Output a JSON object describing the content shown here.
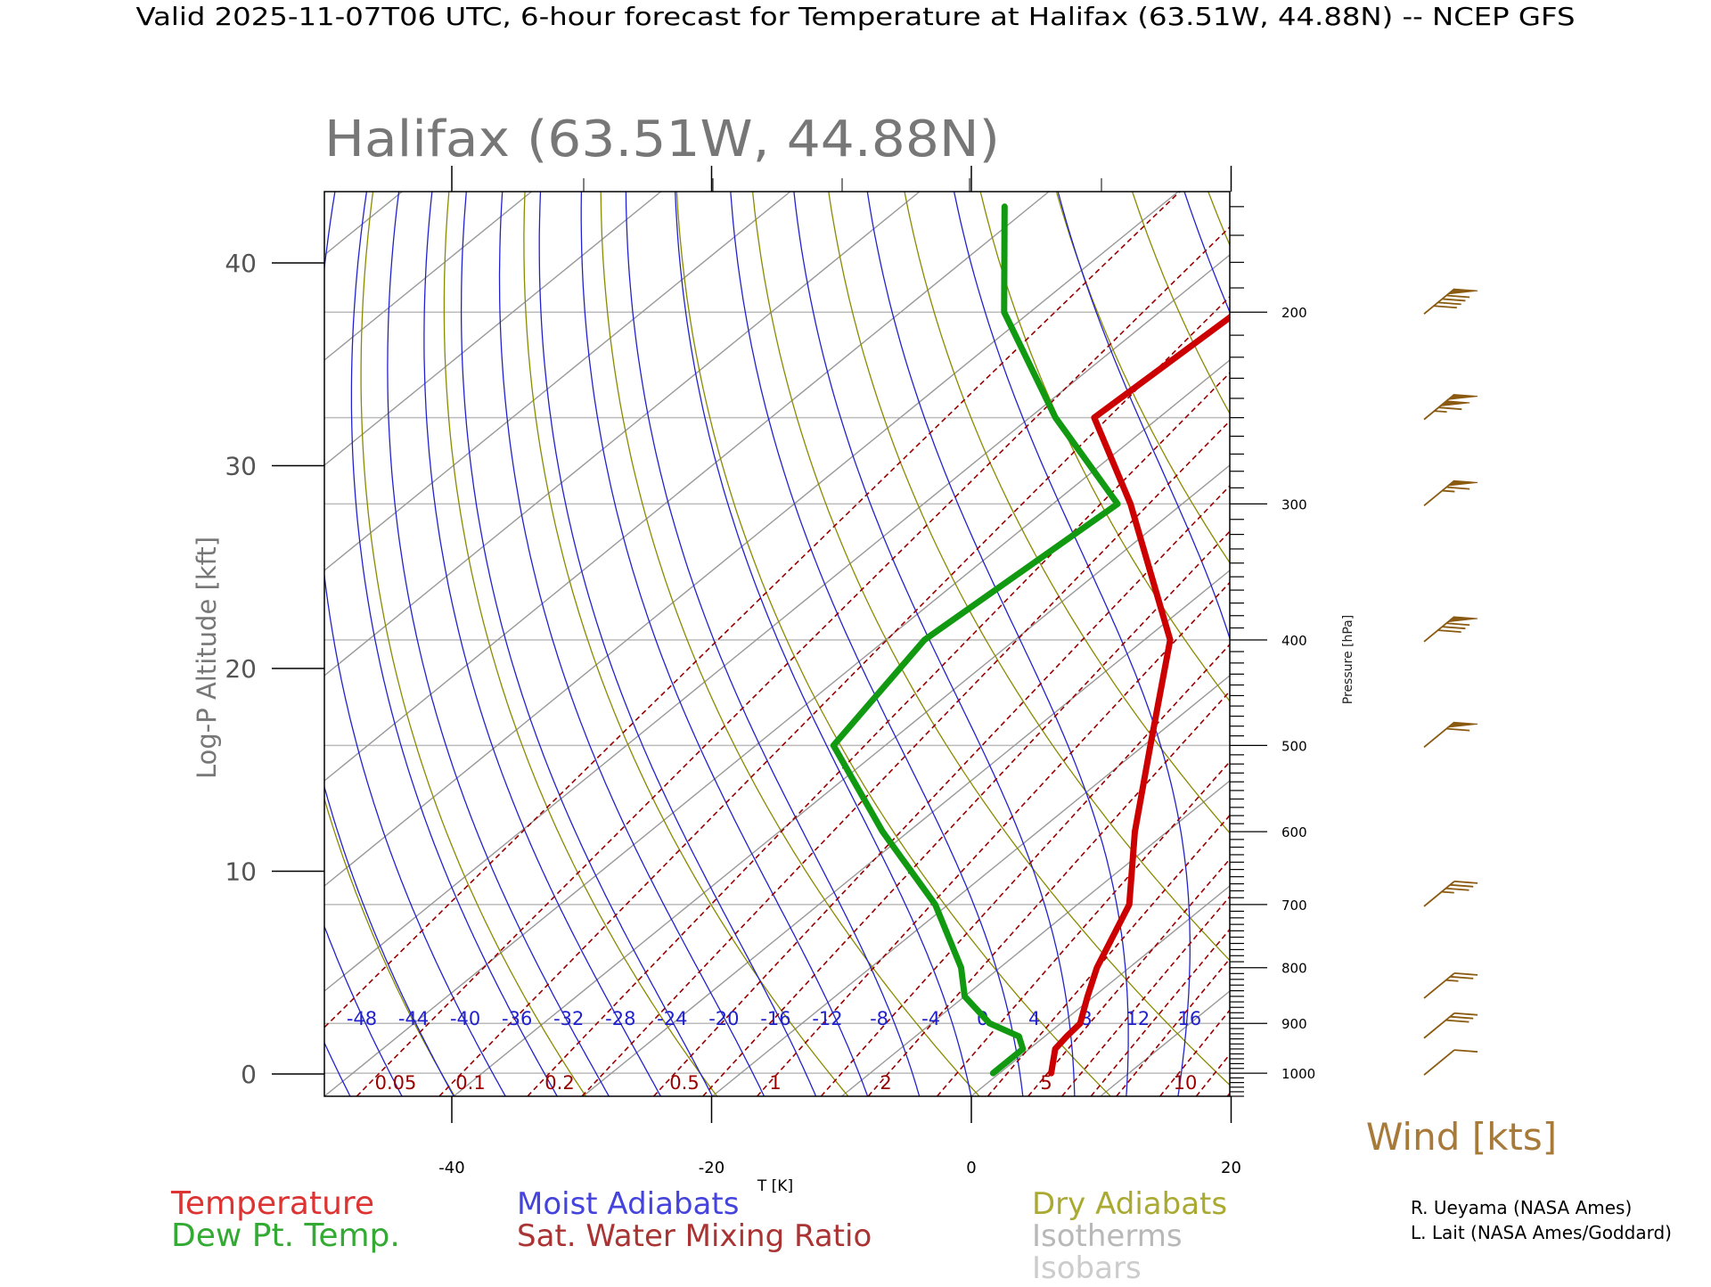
{
  "header": {
    "title": "Valid 2025-11-07T06 UTC, 6-hour forecast for Temperature at Halifax (63.51W, 44.88N) -- NCEP GFS",
    "subtitle": "Halifax (63.51W, 44.88N)"
  },
  "colors": {
    "temperature": "#cc0000",
    "dewpoint": "#119911",
    "moist_adiabat": "#2222cc",
    "mixing_ratio": "#990000",
    "dry_adiabat": "#8a8a00",
    "isotherm": "#999999",
    "isobar": "#bbbbbb",
    "wind": "#8a5a10"
  },
  "chart_data": {
    "type": "line",
    "diagram": "skew-T log-P",
    "xlabel": "T [K]",
    "ylabel": "Log-P Altitude [kft]",
    "y2label": "Pressure [hPa]",
    "xlim": [
      -50,
      20
    ],
    "x_ticks": [
      "-40",
      "-20",
      "0",
      "20"
    ],
    "ylim_pressure_hpa": [
      1050,
      155
    ],
    "y_ticks": [
      "0",
      "10",
      "20",
      "30",
      "40"
    ],
    "pressure_labels": [
      "200",
      "300",
      "400",
      "500",
      "600",
      "700",
      "800",
      "900",
      "1000"
    ],
    "isobars_hpa": [
      1000,
      900,
      700,
      500,
      400,
      300,
      250,
      200
    ],
    "moist_adiabat_labels": [
      "-48",
      "-44",
      "-40",
      "-36",
      "-32",
      "-28",
      "-24",
      "-20",
      "-16",
      "-12",
      "-8",
      "-4",
      "0",
      "4",
      "8",
      "12",
      "16"
    ],
    "mixing_ratio_labels": [
      "0.05",
      "0.1",
      "0.2",
      "0.5",
      "1",
      "2",
      "5",
      "10"
    ],
    "series": [
      {
        "name": "Temperature",
        "pressure_hpa": [
          1000,
          950,
          925,
          900,
          850,
          800,
          700,
          600,
          500,
          400,
          300,
          250,
          200,
          160
        ],
        "temp_c": [
          4.0,
          2.0,
          1.7,
          1.5,
          -0.5,
          -2.5,
          -6.0,
          -12.5,
          -19.5,
          -28.0,
          -44.0,
          -55.0,
          -54.0,
          -56.0
        ]
      },
      {
        "name": "Dew Pt. Temp.",
        "pressure_hpa": [
          1000,
          950,
          925,
          900,
          850,
          800,
          700,
          600,
          500,
          400,
          300,
          250,
          200,
          160
        ],
        "temp_c": [
          -0.5,
          -0.5,
          -2.0,
          -5.5,
          -10.0,
          -13.0,
          -21.0,
          -32.0,
          -44.0,
          -47.0,
          -45.0,
          -58.0,
          -72.0,
          -82.0
        ]
      }
    ],
    "wind_barbs": [
      {
        "pressure_hpa": 1000,
        "speed_kts": 10,
        "direction_deg": 290
      },
      {
        "pressure_hpa": 925,
        "speed_kts": 30,
        "direction_deg": 270
      },
      {
        "pressure_hpa": 850,
        "speed_kts": 25,
        "direction_deg": 280
      },
      {
        "pressure_hpa": 700,
        "speed_kts": 35,
        "direction_deg": 270
      },
      {
        "pressure_hpa": 500,
        "speed_kts": 60,
        "direction_deg": 270
      },
      {
        "pressure_hpa": 400,
        "speed_kts": 80,
        "direction_deg": 270
      },
      {
        "pressure_hpa": 300,
        "speed_kts": 65,
        "direction_deg": 270
      },
      {
        "pressure_hpa": 250,
        "speed_kts": 115,
        "direction_deg": 270
      },
      {
        "pressure_hpa": 200,
        "speed_kts": 90,
        "direction_deg": 270
      }
    ],
    "wind_label": "Wind [kts]"
  },
  "legend": {
    "temperature": "Temperature",
    "dewpoint": "Dew Pt. Temp.",
    "moist_adiabats": "Moist Adiabats",
    "mixing_ratio": "Sat. Water Mixing Ratio",
    "dry_adiabats": "Dry Adiabats",
    "isotherms": "Isotherms",
    "isobars": "Isobars"
  },
  "credits": {
    "line1": "R. Ueyama (NASA Ames)",
    "line2": "L. Lait (NASA Ames/Goddard)"
  }
}
